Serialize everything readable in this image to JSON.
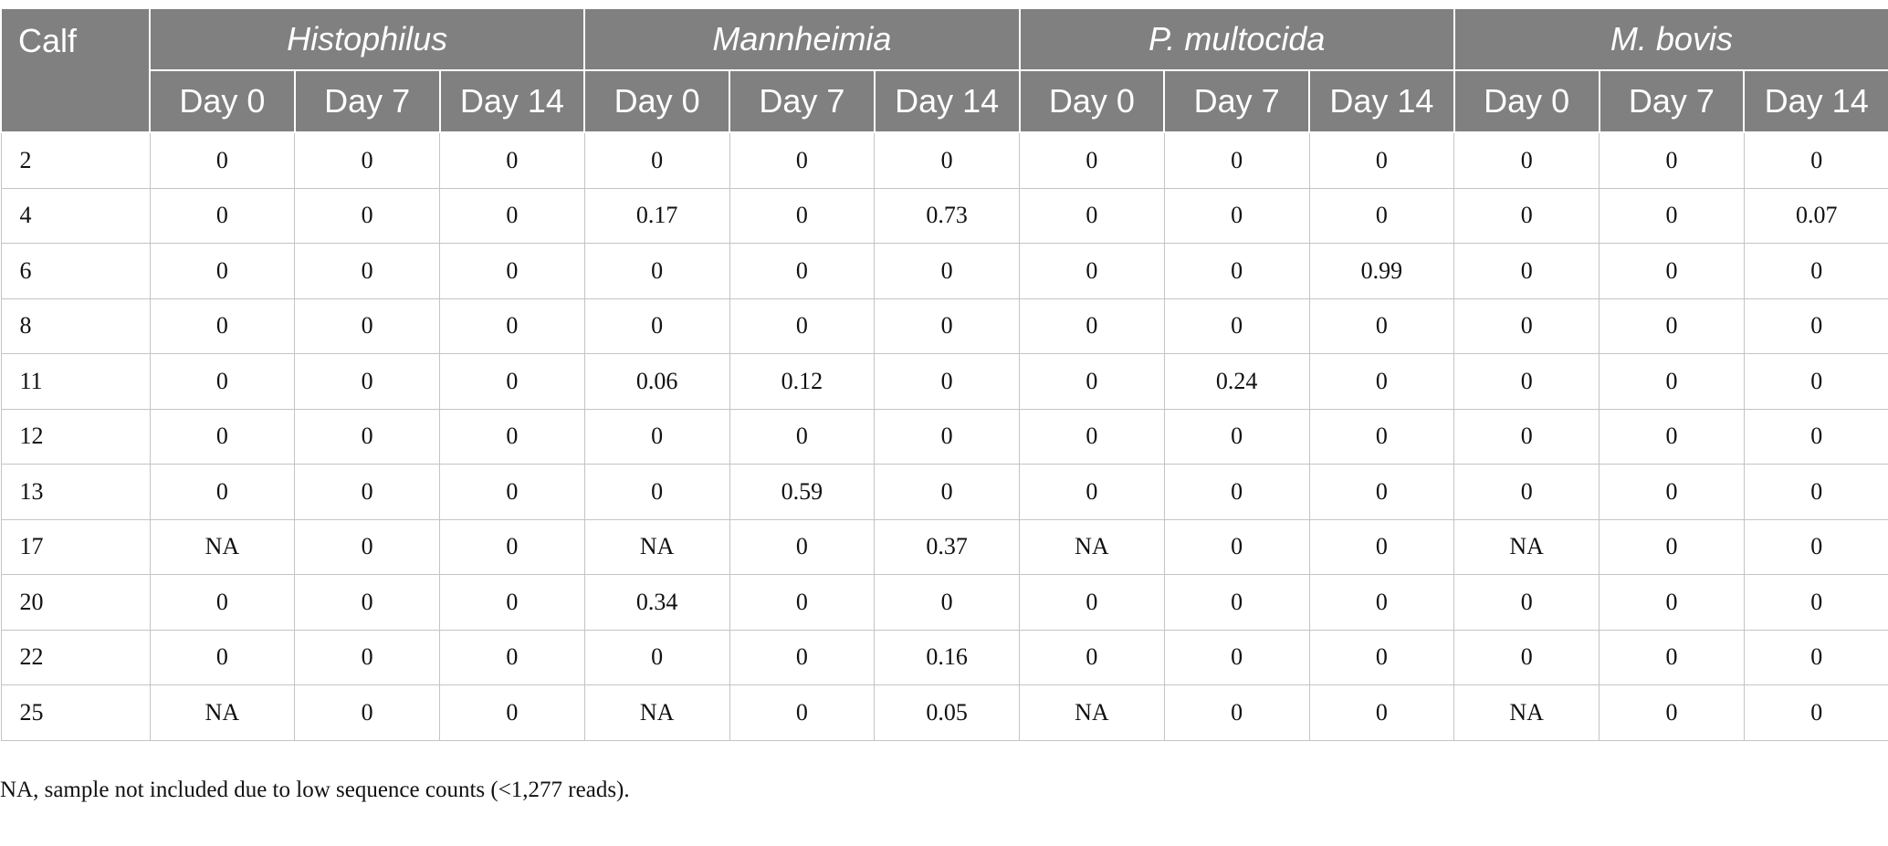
{
  "table": {
    "calf_header": "Calf",
    "groups": [
      "Histophilus",
      "Mannheimia",
      "P. multocida",
      "M. bovis"
    ],
    "days": [
      "Day 0",
      "Day 7",
      "Day 14"
    ],
    "rows": [
      {
        "calf": "2",
        "values": [
          "0",
          "0",
          "0",
          "0",
          "0",
          "0",
          "0",
          "0",
          "0",
          "0",
          "0",
          "0"
        ]
      },
      {
        "calf": "4",
        "values": [
          "0",
          "0",
          "0",
          "0.17",
          "0",
          "0.73",
          "0",
          "0",
          "0",
          "0",
          "0",
          "0.07"
        ]
      },
      {
        "calf": "6",
        "values": [
          "0",
          "0",
          "0",
          "0",
          "0",
          "0",
          "0",
          "0",
          "0.99",
          "0",
          "0",
          "0"
        ]
      },
      {
        "calf": "8",
        "values": [
          "0",
          "0",
          "0",
          "0",
          "0",
          "0",
          "0",
          "0",
          "0",
          "0",
          "0",
          "0"
        ]
      },
      {
        "calf": "11",
        "values": [
          "0",
          "0",
          "0",
          "0.06",
          "0.12",
          "0",
          "0",
          "0.24",
          "0",
          "0",
          "0",
          "0"
        ]
      },
      {
        "calf": "12",
        "values": [
          "0",
          "0",
          "0",
          "0",
          "0",
          "0",
          "0",
          "0",
          "0",
          "0",
          "0",
          "0"
        ]
      },
      {
        "calf": "13",
        "values": [
          "0",
          "0",
          "0",
          "0",
          "0.59",
          "0",
          "0",
          "0",
          "0",
          "0",
          "0",
          "0"
        ]
      },
      {
        "calf": "17",
        "values": [
          "NA",
          "0",
          "0",
          "NA",
          "0",
          "0.37",
          "NA",
          "0",
          "0",
          "NA",
          "0",
          "0"
        ]
      },
      {
        "calf": "20",
        "values": [
          "0",
          "0",
          "0",
          "0.34",
          "0",
          "0",
          "0",
          "0",
          "0",
          "0",
          "0",
          "0"
        ]
      },
      {
        "calf": "22",
        "values": [
          "0",
          "0",
          "0",
          "0",
          "0",
          "0.16",
          "0",
          "0",
          "0",
          "0",
          "0",
          "0"
        ]
      },
      {
        "calf": "25",
        "values": [
          "NA",
          "0",
          "0",
          "NA",
          "0",
          "0.05",
          "NA",
          "0",
          "0",
          "NA",
          "0",
          "0"
        ]
      }
    ]
  },
  "footnote": "NA, sample not included due to low sequence counts (<1,277 reads)."
}
